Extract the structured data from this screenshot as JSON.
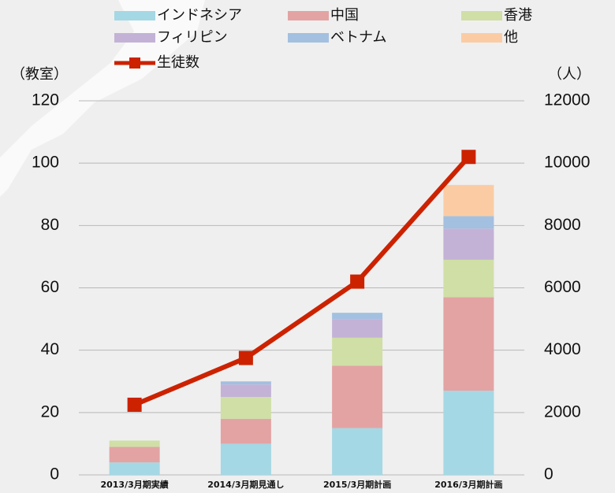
{
  "chart_data": {
    "type": "bar",
    "stacked": true,
    "categories": [
      "2013/3月期実績",
      "2014/3月期見通し",
      "2015/3月期計画",
      "2016/3月期計画"
    ],
    "ylabel": "（教室）",
    "y2label": "（人）",
    "ylim": [
      0,
      120
    ],
    "yticks": [
      0,
      20,
      40,
      60,
      80,
      100,
      120
    ],
    "y2lim": [
      0,
      12000
    ],
    "y2ticks": [
      0,
      2000,
      4000,
      6000,
      8000,
      10000,
      12000
    ],
    "grid": true,
    "series": [
      {
        "name": "インドネシア",
        "color": "#a4d8e4",
        "values": [
          4,
          10,
          15,
          27
        ]
      },
      {
        "name": "中国",
        "color": "#e3a3a3",
        "values": [
          5,
          8,
          20,
          30
        ]
      },
      {
        "name": "香港",
        "color": "#cfdfa6",
        "values": [
          2,
          7,
          9,
          12
        ]
      },
      {
        "name": "フィリピン",
        "color": "#c3b2d6",
        "values": [
          0,
          4,
          6,
          10
        ]
      },
      {
        "name": "ベトナム",
        "color": "#a3c0e0",
        "values": [
          0,
          1,
          2,
          4
        ]
      },
      {
        "name": "他",
        "color": "#fbcca4",
        "values": [
          0,
          0,
          0,
          10
        ]
      },
      {
        "name": "生徒数",
        "color": "#cc2200",
        "type": "line",
        "axis": "y2",
        "values": [
          2250,
          3750,
          6200,
          10200
        ]
      }
    ]
  }
}
